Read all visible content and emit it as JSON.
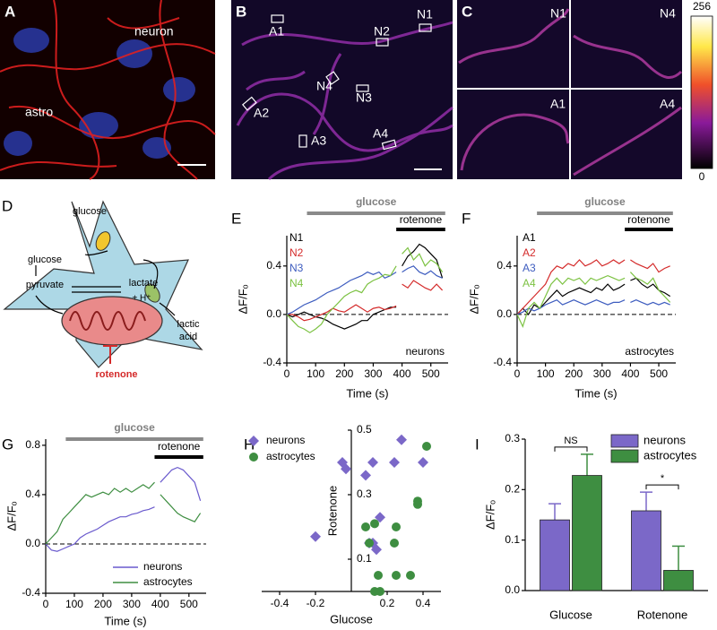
{
  "images": [
    {
      "label": "A",
      "texts": [
        "neuron",
        "astro"
      ]
    },
    {
      "label": "B",
      "texts": [
        "A1",
        "N2",
        "N1",
        "N4",
        "N3",
        "A2",
        "A3",
        "A4"
      ]
    },
    {
      "label": "C",
      "texts": [
        "N1",
        "N4",
        "A1",
        "A4"
      ]
    }
  ],
  "colorbar": {
    "max": "256",
    "min": "0"
  },
  "diagram": {
    "label": "D",
    "texts": [
      "glucose",
      "glucose",
      "pyruvate",
      "lactate",
      "+ H⁺",
      "lactic",
      "acid",
      "rotenone"
    ]
  },
  "chart_data": [
    {
      "type": "line",
      "label": "E",
      "ylabel": "ΔF/Fₒ",
      "xlabel": "Time (s)",
      "note": "neurons",
      "x": [
        0,
        20,
        40,
        60,
        80,
        100,
        120,
        140,
        160,
        180,
        200,
        220,
        240,
        260,
        280,
        300,
        320,
        340,
        360,
        380,
        390,
        400,
        420,
        440,
        460,
        480,
        500,
        520,
        540
      ],
      "xlim": [
        0,
        560
      ],
      "xticks": [
        0,
        100,
        200,
        300,
        400,
        500
      ],
      "ylim": [
        -0.4,
        0.65
      ],
      "yticks": [
        -0.4,
        {
          "value": 0,
          "label": "0.0"
        },
        0.4
      ],
      "zero_line": true,
      "legend": "upper left",
      "legend_swatch": false,
      "bars": [
        {
          "text": "glucose",
          "start": 70,
          "end": 550,
          "color": "#8a8a8a"
        },
        {
          "text": "rotenone",
          "start": 380,
          "end": 550,
          "color": "#000000"
        }
      ],
      "series": [
        {
          "name": "N1",
          "color": "#000000",
          "values": [
            0,
            -0.02,
            0,
            0.02,
            0,
            -0.02,
            -0.03,
            -0.05,
            -0.08,
            -0.1,
            -0.12,
            -0.1,
            -0.08,
            -0.05,
            -0.05,
            0,
            0.02,
            0.04,
            0.06,
            0.06,
            null,
            0.4,
            0.48,
            0.52,
            0.58,
            0.55,
            0.5,
            0.45,
            0.3
          ]
        },
        {
          "name": "N2",
          "color": "#d42a2a",
          "values": [
            0,
            0,
            -0.02,
            -0.05,
            -0.04,
            -0.02,
            0,
            0.02,
            0.05,
            0.03,
            0.02,
            0.05,
            0.08,
            0.05,
            0.02,
            0.05,
            0.06,
            0.04,
            0.05,
            0.07,
            null,
            0.25,
            0.22,
            0.28,
            0.25,
            0.22,
            0.2,
            0.25,
            0.2
          ]
        },
        {
          "name": "N3",
          "color": "#3d5cbf",
          "values": [
            0,
            0.02,
            0.05,
            0.08,
            0.1,
            0.12,
            0.15,
            0.18,
            0.2,
            0.22,
            0.25,
            0.28,
            0.3,
            0.32,
            0.35,
            0.33,
            0.35,
            0.3,
            0.32,
            0.35,
            null,
            0.35,
            0.38,
            0.4,
            0.35,
            0.33,
            0.36,
            0.32,
            0.3
          ]
        },
        {
          "name": "N4",
          "color": "#7cc242",
          "values": [
            0,
            -0.05,
            -0.1,
            -0.12,
            -0.15,
            -0.12,
            -0.08,
            0,
            0.05,
            0.1,
            0.15,
            0.18,
            0.2,
            0.18,
            0.25,
            0.28,
            0.3,
            0.33,
            0.32,
            0.4,
            null,
            0.5,
            0.55,
            0.45,
            0.5,
            0.4,
            0.45,
            0.42,
            0.35
          ]
        }
      ]
    },
    {
      "type": "line",
      "label": "F",
      "ylabel": "ΔF/Fₒ",
      "xlabel": "Time (s)",
      "note": "astrocytes",
      "x": [
        0,
        20,
        40,
        60,
        80,
        100,
        120,
        140,
        160,
        180,
        200,
        220,
        240,
        260,
        280,
        300,
        320,
        340,
        360,
        380,
        390,
        400,
        420,
        440,
        460,
        480,
        500,
        520,
        540
      ],
      "xlim": [
        0,
        560
      ],
      "xticks": [
        0,
        100,
        200,
        300,
        400,
        500
      ],
      "ylim": [
        -0.4,
        0.65
      ],
      "yticks": [
        -0.4,
        {
          "value": 0,
          "label": "0.0"
        },
        0.4
      ],
      "zero_line": true,
      "legend": "upper left",
      "legend_swatch": false,
      "bars": [
        {
          "text": "glucose",
          "start": 70,
          "end": 550,
          "color": "#8a8a8a"
        },
        {
          "text": "rotenone",
          "start": 380,
          "end": 550,
          "color": "#000000"
        }
      ],
      "series": [
        {
          "name": "A1",
          "color": "#000000",
          "values": [
            0,
            0.05,
            0,
            0.08,
            0.05,
            0.1,
            0.15,
            0.2,
            0.15,
            0.18,
            0.2,
            0.22,
            0.2,
            0.18,
            0.22,
            0.2,
            0.25,
            0.2,
            0.22,
            0.25,
            null,
            0.28,
            0.3,
            0.25,
            0.22,
            0.25,
            0.2,
            0.18,
            0.15
          ]
        },
        {
          "name": "A2",
          "color": "#d42a2a",
          "values": [
            0,
            0.05,
            0.1,
            0.15,
            0.2,
            0.25,
            0.35,
            0.4,
            0.38,
            0.42,
            0.4,
            0.45,
            0.4,
            0.42,
            0.45,
            0.4,
            0.42,
            0.45,
            0.42,
            0.45,
            null,
            0.45,
            0.42,
            0.4,
            0.38,
            0.42,
            0.35,
            0.38,
            0.4
          ]
        },
        {
          "name": "A3",
          "color": "#3d5cbf",
          "values": [
            0,
            0.02,
            0.05,
            0.03,
            0.05,
            0.08,
            0.1,
            0.12,
            0.08,
            0.1,
            0.12,
            0.1,
            0.08,
            0.1,
            0.12,
            0.1,
            0.08,
            0.1,
            0.1,
            0.12,
            null,
            0.1,
            0.12,
            0.1,
            0.08,
            0.1,
            0.08,
            0.1,
            0.08
          ]
        },
        {
          "name": "A4",
          "color": "#7cc242",
          "values": [
            0,
            -0.1,
            0.05,
            0.1,
            0.05,
            0.15,
            0.25,
            0.3,
            0.25,
            0.3,
            0.28,
            0.3,
            0.25,
            0.3,
            0.28,
            0.3,
            0.32,
            0.3,
            0.28,
            0.3,
            null,
            0.35,
            0.3,
            0.28,
            0.25,
            0.3,
            0.2,
            0.15,
            0.1
          ]
        }
      ]
    },
    {
      "type": "line",
      "label": "G",
      "ylabel": "ΔF/Fₒ",
      "xlabel": "Time (s)",
      "x": [
        0,
        20,
        40,
        60,
        80,
        100,
        120,
        140,
        160,
        180,
        200,
        220,
        240,
        260,
        280,
        300,
        320,
        340,
        360,
        380,
        390,
        400,
        420,
        440,
        460,
        480,
        500,
        520,
        540
      ],
      "xlim": [
        0,
        560
      ],
      "xticks": [
        0,
        100,
        200,
        300,
        400,
        500
      ],
      "ylim": [
        -0.4,
        0.85
      ],
      "yticks": [
        -0.4,
        {
          "value": 0,
          "label": "0.0"
        },
        0.4,
        0.8
      ],
      "zero_line": true,
      "legend": "lower right",
      "legend_swatch": true,
      "bars": [
        {
          "text": "glucose",
          "start": 70,
          "end": 550,
          "color": "#8a8a8a"
        },
        {
          "text": "rotenone",
          "start": 380,
          "end": 550,
          "color": "#000000"
        }
      ],
      "series": [
        {
          "name": "neurons",
          "color": "#6a5acd",
          "values": [
            0,
            -0.05,
            -0.06,
            -0.04,
            -0.02,
            0,
            0.05,
            0.08,
            0.1,
            0.12,
            0.15,
            0.18,
            0.2,
            0.22,
            0.22,
            0.24,
            0.25,
            0.27,
            0.28,
            0.3,
            null,
            0.5,
            0.55,
            0.6,
            0.62,
            0.6,
            0.55,
            0.5,
            0.35
          ]
        },
        {
          "name": "astrocytes",
          "color": "#3e8e41",
          "values": [
            0,
            0.05,
            0.1,
            0.2,
            0.25,
            0.3,
            0.35,
            0.4,
            0.38,
            0.4,
            0.42,
            0.4,
            0.45,
            0.42,
            0.45,
            0.42,
            0.45,
            0.48,
            0.45,
            0.5,
            null,
            0.4,
            0.35,
            0.3,
            0.25,
            0.22,
            0.2,
            0.18,
            0.25
          ]
        }
      ]
    },
    {
      "type": "scatter",
      "label": "H",
      "xlabel": "Glucose",
      "ylabel": "Rotenone",
      "xlim": [
        -0.5,
        0.5
      ],
      "xticks": [
        -0.4,
        -0.2,
        0.2,
        0.4
      ],
      "ylim": [
        0,
        0.5
      ],
      "yticks": [
        0.1,
        0.3,
        0.5
      ],
      "legend": "upper left",
      "series": [
        {
          "name": "neurons",
          "color": "#7b68c8",
          "marker": "diamond",
          "x": [
            -0.2,
            -0.05,
            -0.03,
            0.08,
            0.12,
            0.16,
            0.1,
            0.12,
            0.14,
            0.24,
            0.28,
            0.4
          ],
          "values": [
            0.17,
            0.4,
            0.38,
            0.36,
            0.4,
            0.23,
            0.15,
            0.15,
            0.13,
            0.4,
            0.47,
            0.4
          ]
        },
        {
          "name": "astrocytes",
          "color": "#3e8e41",
          "marker": "circle",
          "x": [
            0.42,
            0.37,
            0.37,
            0.08,
            0.13,
            0.1,
            0.25,
            0.24,
            0.15,
            0.25,
            0.33,
            0.13,
            0.16
          ],
          "values": [
            0.45,
            0.28,
            0.27,
            0.2,
            0.21,
            0.15,
            0.2,
            0.15,
            0.05,
            0.05,
            0.05,
            0,
            0
          ]
        }
      ]
    },
    {
      "type": "bar",
      "label": "I",
      "ylabel": "ΔF/Fₒ",
      "categories": [
        "Glucose",
        "Rotenone"
      ],
      "ylim": [
        0,
        0.3
      ],
      "yticks": [
        {
          "value": 0,
          "label": "0.0"
        },
        0.1,
        0.2,
        0.3
      ],
      "legend": "upper right",
      "series": [
        {
          "name": "neurons",
          "color": "#7b68c8",
          "values": [
            0.14,
            0.158
          ],
          "errors": [
            0.032,
            0.037
          ]
        },
        {
          "name": "astrocytes",
          "color": "#3e8e41",
          "values": [
            0.228,
            0.04
          ],
          "errors": [
            0.042,
            0.048
          ]
        }
      ],
      "significance": [
        {
          "text": "NS",
          "category": 0
        },
        {
          "text": "*",
          "category": 1
        }
      ]
    }
  ]
}
